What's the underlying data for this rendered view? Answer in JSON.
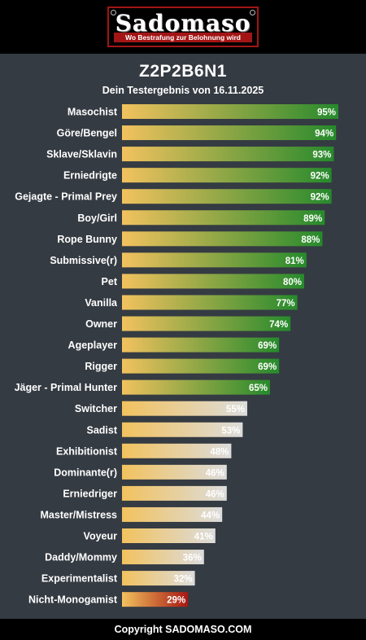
{
  "header": {
    "logo_title": "Sadomaso",
    "logo_tagline": "Wo Bestrafung zur Belohnung wird"
  },
  "result": {
    "code": "Z2P2B6N1",
    "subtitle": "Dein Testergebnis von 16.11.2025"
  },
  "footer": {
    "copyright": "Copyright SADOMASO.COM"
  },
  "colors": {
    "background": "#353b42",
    "bar_start": "#f2c25e",
    "high_end": "#268a2c",
    "mid_end": "#dcdcdc",
    "low_end": "#a81712"
  },
  "chart_data": {
    "type": "bar",
    "orientation": "horizontal",
    "title": "Z2P2B6N1",
    "subtitle": "Dein Testergebnis von 16.11.2025",
    "value_suffix": "%",
    "xlim": [
      0,
      100
    ],
    "categories": [
      "Masochist",
      "Göre/Bengel",
      "Sklave/Sklavin",
      "Erniedrigte",
      "Gejagte - Primal Prey",
      "Boy/Girl",
      "Rope Bunny",
      "Submissive(r)",
      "Pet",
      "Vanilla",
      "Owner",
      "Ageplayer",
      "Rigger",
      "Jäger - Primal Hunter",
      "Switcher",
      "Sadist",
      "Exhibitionist",
      "Dominante(r)",
      "Erniedriger",
      "Master/Mistress",
      "Voyeur",
      "Daddy/Mommy",
      "Experimentalist",
      "Nicht-Monogamist"
    ],
    "values": [
      95,
      94,
      93,
      92,
      92,
      89,
      88,
      81,
      80,
      77,
      74,
      69,
      69,
      65,
      55,
      53,
      48,
      46,
      46,
      44,
      41,
      36,
      32,
      29
    ],
    "color_groups": [
      "high",
      "high",
      "high",
      "high",
      "high",
      "high",
      "high",
      "high",
      "high",
      "high",
      "high",
      "high",
      "high",
      "high",
      "mid",
      "mid",
      "mid",
      "mid",
      "mid",
      "mid",
      "mid",
      "mid",
      "mid",
      "low"
    ]
  }
}
